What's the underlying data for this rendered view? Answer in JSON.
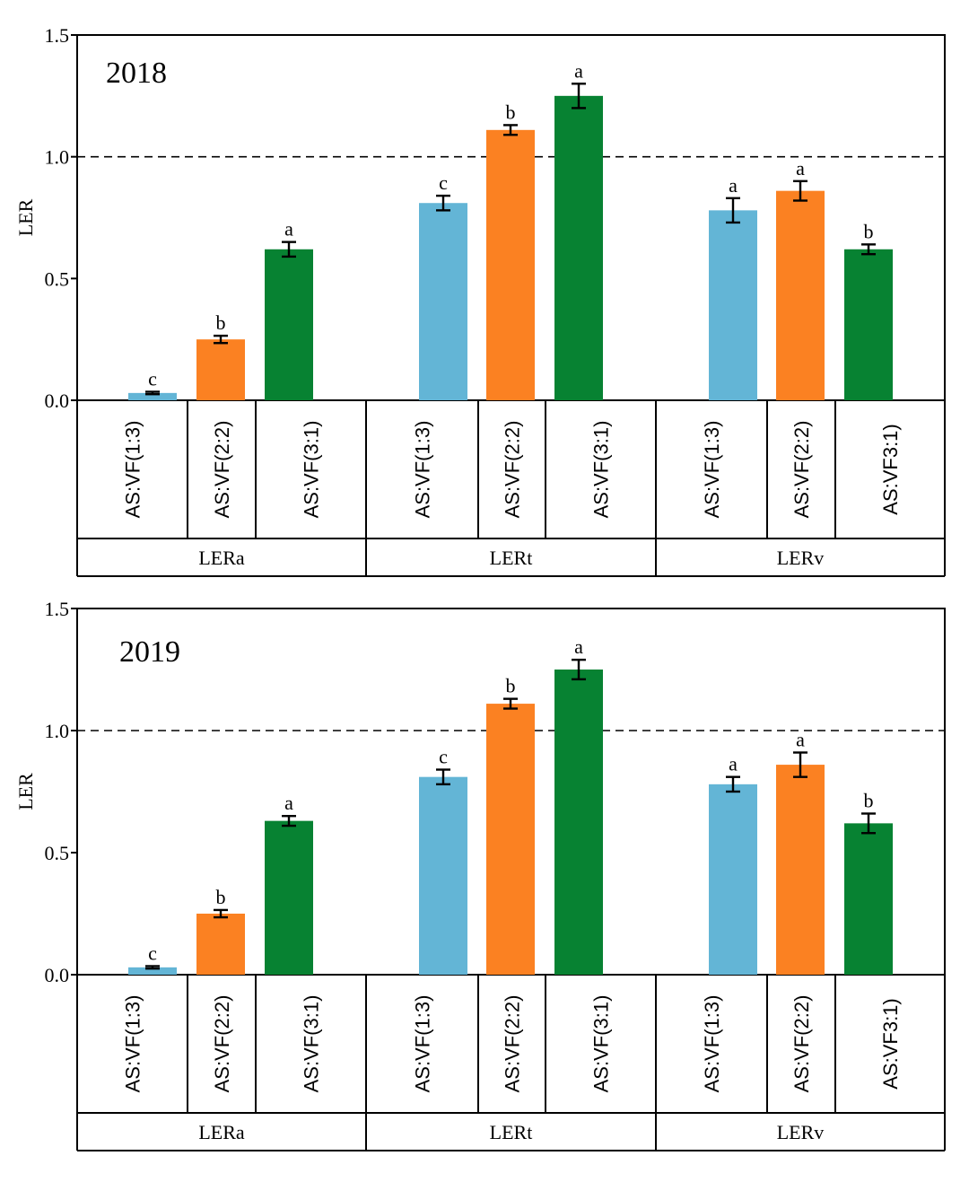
{
  "colors": {
    "blue": "#63b5d6",
    "orange": "#fb8122",
    "green": "#078232",
    "axis": "#000000"
  },
  "chart_data": [
    {
      "type": "bar",
      "title": "2018",
      "ylabel": "LER",
      "ylim": [
        0,
        1.5
      ],
      "yticks": [
        "0.0",
        "0.5",
        "1.0",
        "1.5"
      ],
      "reference_line": {
        "y": 1.0,
        "style": "dashed"
      },
      "groups": [
        {
          "label": "LERa",
          "bars": [
            {
              "category": "AS:VF(1:3)",
              "value": 0.03,
              "error": 0.005,
              "sig": "c",
              "color": "blue"
            },
            {
              "category": "AS:VF(2:2)",
              "value": 0.25,
              "error": 0.015,
              "sig": "b",
              "color": "orange"
            },
            {
              "category": "AS:VF(3:1)",
              "value": 0.62,
              "error": 0.03,
              "sig": "a",
              "color": "green"
            }
          ]
        },
        {
          "label": "LERt",
          "bars": [
            {
              "category": "AS:VF(1:3)",
              "value": 0.81,
              "error": 0.03,
              "sig": "c",
              "color": "blue"
            },
            {
              "category": "AS:VF(2:2)",
              "value": 1.11,
              "error": 0.02,
              "sig": "b",
              "color": "orange"
            },
            {
              "category": "AS:VF(3:1)",
              "value": 1.25,
              "error": 0.05,
              "sig": "a",
              "color": "green"
            }
          ]
        },
        {
          "label": "LERv",
          "bars": [
            {
              "category": "AS:VF(1:3)",
              "value": 0.78,
              "error": 0.05,
              "sig": "a",
              "color": "blue"
            },
            {
              "category": "AS:VF(2:2)",
              "value": 0.86,
              "error": 0.04,
              "sig": "a",
              "color": "orange"
            },
            {
              "category": "AS:VF3:1)",
              "value": 0.62,
              "error": 0.02,
              "sig": "b",
              "color": "green"
            }
          ]
        }
      ]
    },
    {
      "type": "bar",
      "title": "2019",
      "ylabel": "LER",
      "ylim": [
        0,
        1.5
      ],
      "yticks": [
        "0.0",
        "0.5",
        "1.0",
        "1.5"
      ],
      "reference_line": {
        "y": 1.0,
        "style": "dashed"
      },
      "groups": [
        {
          "label": "LERa",
          "bars": [
            {
              "category": "AS:VF(1:3)",
              "value": 0.03,
              "error": 0.005,
              "sig": "c",
              "color": "blue"
            },
            {
              "category": "AS:VF(2:2)",
              "value": 0.25,
              "error": 0.015,
              "sig": "b",
              "color": "orange"
            },
            {
              "category": "AS:VF(3:1)",
              "value": 0.63,
              "error": 0.02,
              "sig": "a",
              "color": "green"
            }
          ]
        },
        {
          "label": "LERt",
          "bars": [
            {
              "category": "AS:VF(1:3)",
              "value": 0.81,
              "error": 0.03,
              "sig": "c",
              "color": "blue"
            },
            {
              "category": "AS:VF(2:2)",
              "value": 1.11,
              "error": 0.02,
              "sig": "b",
              "color": "orange"
            },
            {
              "category": "AS:VF(3:1)",
              "value": 1.25,
              "error": 0.04,
              "sig": "a",
              "color": "green"
            }
          ]
        },
        {
          "label": "LERv",
          "bars": [
            {
              "category": "AS:VF(1:3)",
              "value": 0.78,
              "error": 0.03,
              "sig": "a",
              "color": "blue"
            },
            {
              "category": "AS:VF(2:2)",
              "value": 0.86,
              "error": 0.05,
              "sig": "a",
              "color": "orange"
            },
            {
              "category": "AS:VF3:1)",
              "value": 0.62,
              "error": 0.04,
              "sig": "b",
              "color": "green"
            }
          ]
        }
      ]
    }
  ]
}
